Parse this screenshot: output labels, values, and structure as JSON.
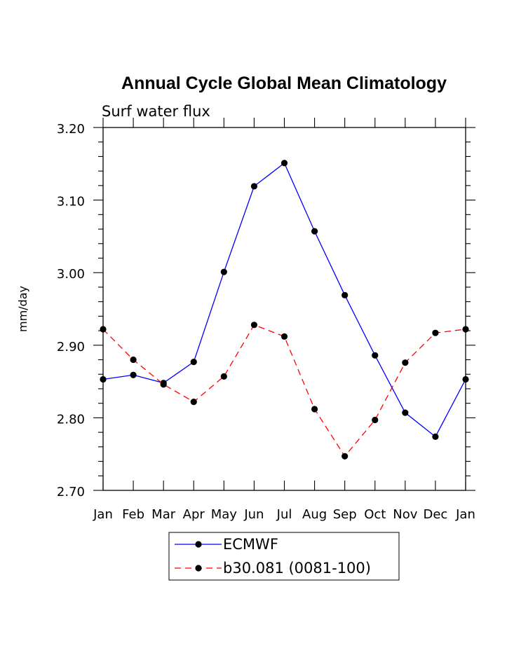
{
  "chart_data": {
    "type": "line",
    "title": "Annual Cycle Global Mean Climatology",
    "subtitle": "Surf water flux",
    "xlabel": "",
    "ylabel": "mm/day",
    "categories": [
      "Jan",
      "Feb",
      "Mar",
      "Apr",
      "May",
      "Jun",
      "Jul",
      "Aug",
      "Sep",
      "Oct",
      "Nov",
      "Dec",
      "Jan"
    ],
    "ylim": [
      2.7,
      3.2
    ],
    "yticks": [
      "2.70",
      "2.80",
      "2.90",
      "3.00",
      "3.10",
      "3.20"
    ],
    "grid": false,
    "legend_position": "bottom",
    "series": [
      {
        "name": "ECMWF",
        "color": "#0000ff",
        "dash": "solid",
        "values": [
          2.853,
          2.859,
          2.848,
          2.877,
          3.001,
          3.119,
          3.151,
          3.057,
          2.969,
          2.886,
          2.807,
          2.774,
          2.853
        ]
      },
      {
        "name": "b30.081 (0081-100)",
        "color": "#ff0000",
        "dash": "dashed",
        "values": [
          2.922,
          2.88,
          2.846,
          2.822,
          2.857,
          2.928,
          2.912,
          2.812,
          2.747,
          2.797,
          2.876,
          2.917,
          2.922
        ]
      }
    ]
  }
}
